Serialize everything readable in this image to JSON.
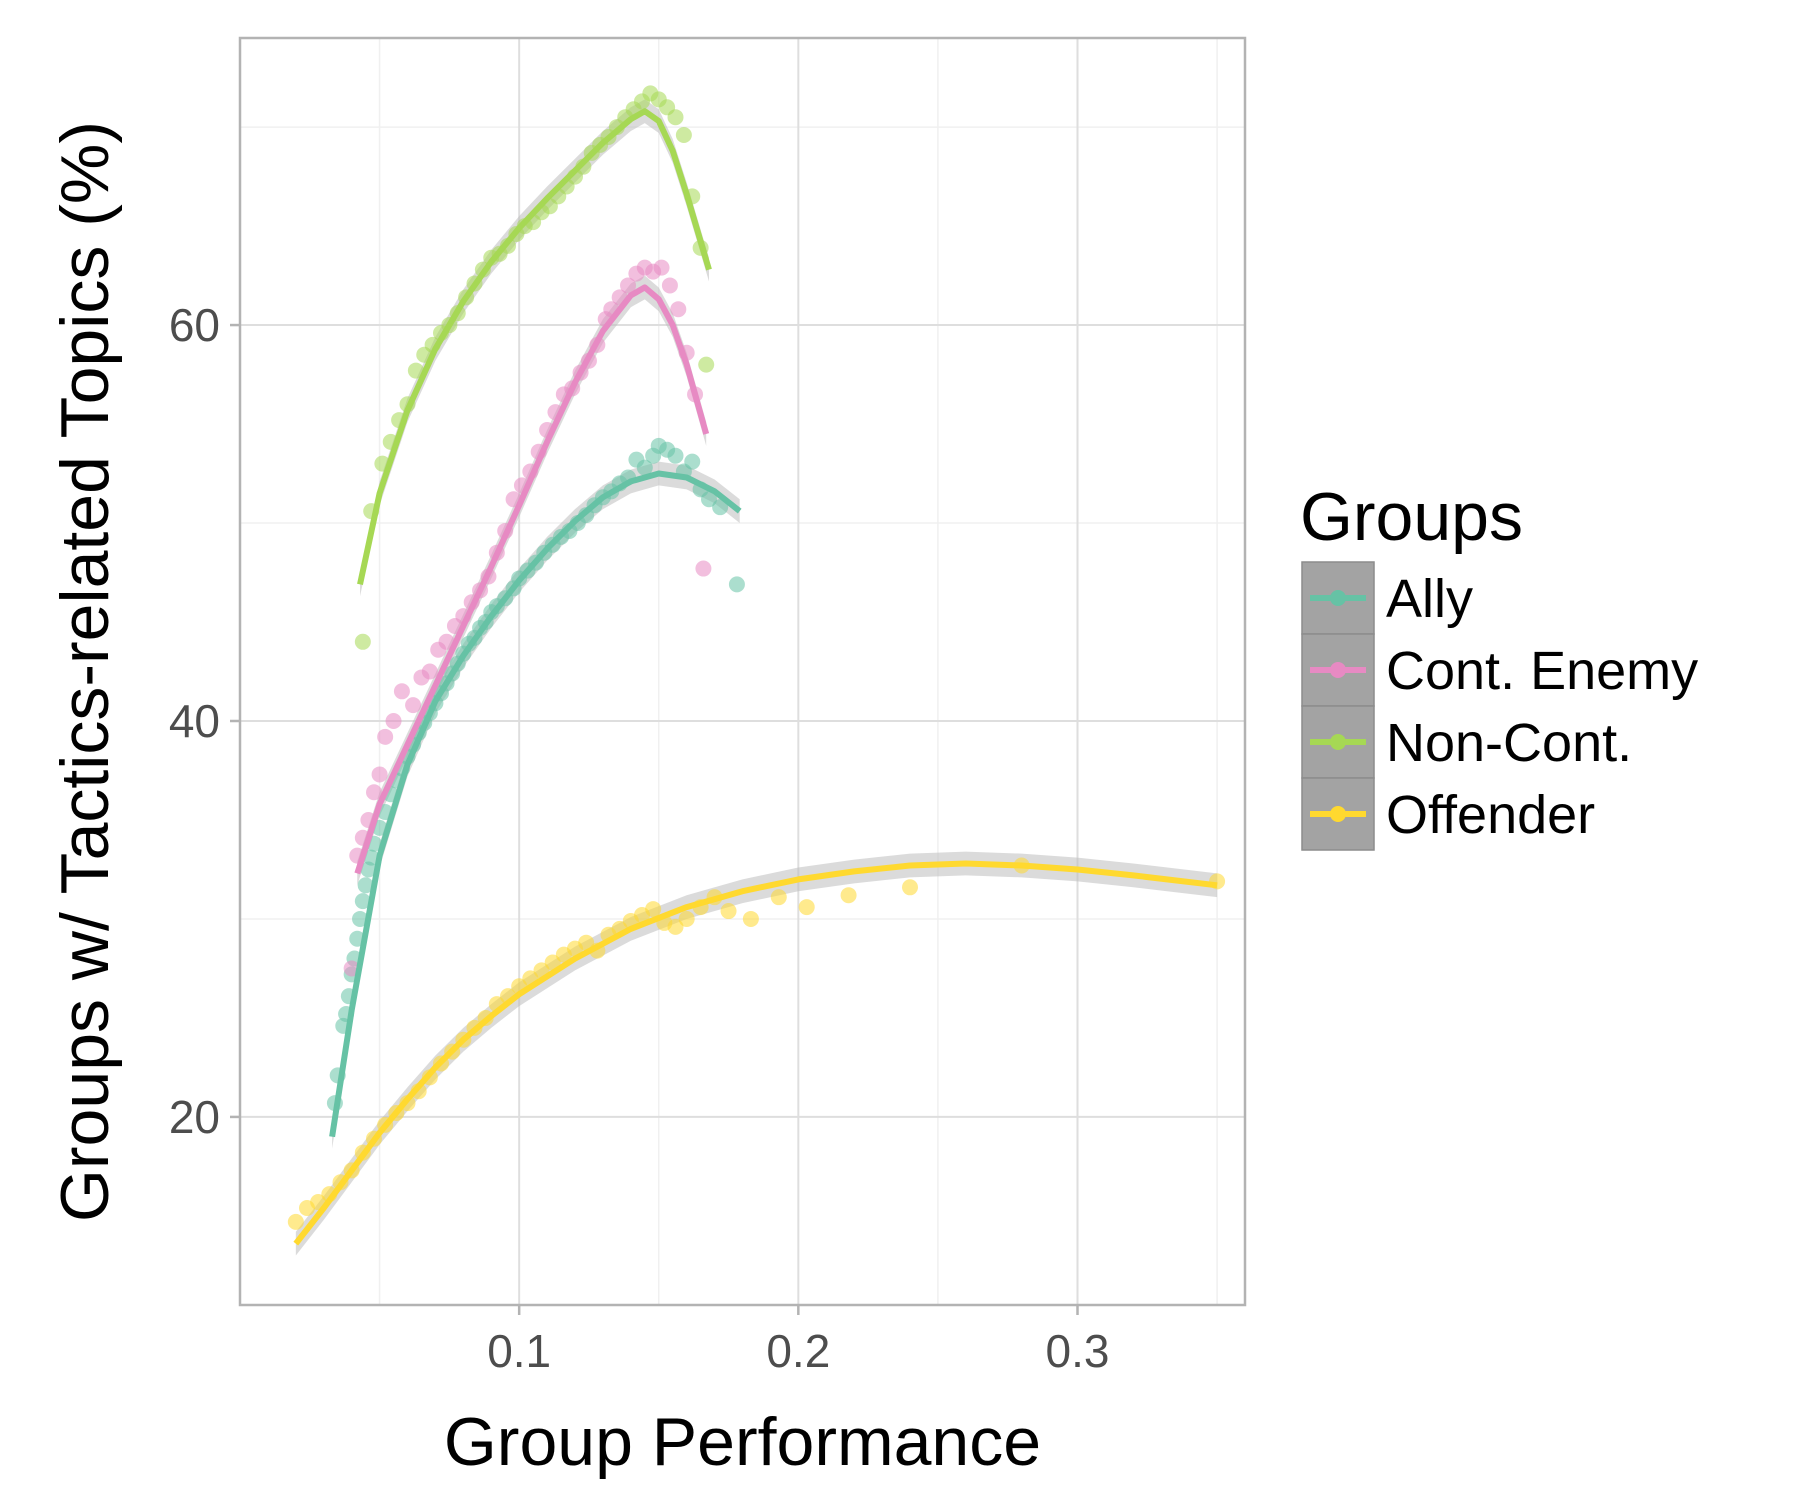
{
  "chart_data": {
    "type": "scatter",
    "title": "",
    "xlabel": "Group Performance",
    "ylabel": "Groups w/ Tactics-related Topics (%)",
    "xlim": [
      0.0,
      0.36
    ],
    "ylim": [
      10.5,
      74.5
    ],
    "xticks": [
      0.1,
      0.2,
      0.3
    ],
    "xtick_labels": [
      "0.1",
      "0.2",
      "0.3"
    ],
    "yticks": [
      20,
      40,
      60
    ],
    "ytick_labels": [
      "20",
      "40",
      "60"
    ],
    "grid": true,
    "legend": {
      "title": "Groups",
      "position": "right"
    },
    "series": [
      {
        "name": "Ally",
        "color": "#66c2a5",
        "points": [
          [
            0.034,
            20.7
          ],
          [
            0.035,
            22.1
          ],
          [
            0.037,
            24.6
          ],
          [
            0.038,
            25.2
          ],
          [
            0.039,
            26.1
          ],
          [
            0.04,
            27.2
          ],
          [
            0.041,
            28.0
          ],
          [
            0.042,
            29.0
          ],
          [
            0.043,
            30.0
          ],
          [
            0.044,
            30.9
          ],
          [
            0.045,
            31.7
          ],
          [
            0.046,
            32.5
          ],
          [
            0.047,
            33.1
          ],
          [
            0.048,
            33.8
          ],
          [
            0.05,
            34.6
          ],
          [
            0.052,
            35.4
          ],
          [
            0.054,
            36.3
          ],
          [
            0.056,
            37.0
          ],
          [
            0.058,
            37.6
          ],
          [
            0.06,
            38.2
          ],
          [
            0.062,
            38.8
          ],
          [
            0.064,
            39.4
          ],
          [
            0.066,
            39.9
          ],
          [
            0.068,
            40.4
          ],
          [
            0.07,
            40.9
          ],
          [
            0.072,
            41.4
          ],
          [
            0.074,
            41.9
          ],
          [
            0.076,
            42.4
          ],
          [
            0.078,
            42.9
          ],
          [
            0.08,
            43.4
          ],
          [
            0.082,
            43.9
          ],
          [
            0.084,
            44.2
          ],
          [
            0.086,
            44.7
          ],
          [
            0.088,
            45.0
          ],
          [
            0.09,
            45.5
          ],
          [
            0.092,
            45.8
          ],
          [
            0.095,
            46.2
          ],
          [
            0.098,
            46.7
          ],
          [
            0.1,
            47.2
          ],
          [
            0.103,
            47.6
          ],
          [
            0.106,
            48.0
          ],
          [
            0.109,
            48.5
          ],
          [
            0.112,
            48.9
          ],
          [
            0.115,
            49.3
          ],
          [
            0.118,
            49.6
          ],
          [
            0.121,
            50.0
          ],
          [
            0.124,
            50.4
          ],
          [
            0.127,
            50.9
          ],
          [
            0.13,
            51.3
          ],
          [
            0.133,
            51.6
          ],
          [
            0.136,
            52.0
          ],
          [
            0.139,
            52.3
          ],
          [
            0.142,
            53.2
          ],
          [
            0.145,
            52.8
          ],
          [
            0.148,
            53.4
          ],
          [
            0.15,
            53.9
          ],
          [
            0.153,
            53.7
          ],
          [
            0.156,
            53.4
          ],
          [
            0.159,
            52.6
          ],
          [
            0.162,
            53.1
          ],
          [
            0.165,
            51.7
          ],
          [
            0.168,
            51.2
          ],
          [
            0.172,
            50.8
          ],
          [
            0.178,
            46.9
          ]
        ],
        "fit": [
          [
            0.033,
            19.0
          ],
          [
            0.04,
            25.4
          ],
          [
            0.05,
            33.2
          ],
          [
            0.06,
            37.8
          ],
          [
            0.07,
            41.0
          ],
          [
            0.08,
            43.3
          ],
          [
            0.09,
            45.3
          ],
          [
            0.1,
            47.1
          ],
          [
            0.11,
            48.7
          ],
          [
            0.12,
            50.1
          ],
          [
            0.13,
            51.3
          ],
          [
            0.14,
            52.1
          ],
          [
            0.15,
            52.5
          ],
          [
            0.16,
            52.3
          ],
          [
            0.17,
            51.6
          ],
          [
            0.179,
            50.6
          ]
        ]
      },
      {
        "name": "Cont. Enemy",
        "color": "#e78ac3",
        "points": [
          [
            0.04,
            27.5
          ],
          [
            0.042,
            33.2
          ],
          [
            0.044,
            34.1
          ],
          [
            0.046,
            35.0
          ],
          [
            0.048,
            36.4
          ],
          [
            0.05,
            37.3
          ],
          [
            0.052,
            39.2
          ],
          [
            0.055,
            40.0
          ],
          [
            0.058,
            41.5
          ],
          [
            0.062,
            40.8
          ],
          [
            0.065,
            42.2
          ],
          [
            0.068,
            42.5
          ],
          [
            0.071,
            43.6
          ],
          [
            0.074,
            44.0
          ],
          [
            0.077,
            44.8
          ],
          [
            0.08,
            45.3
          ],
          [
            0.083,
            46.0
          ],
          [
            0.086,
            46.6
          ],
          [
            0.089,
            47.3
          ],
          [
            0.092,
            48.5
          ],
          [
            0.095,
            49.6
          ],
          [
            0.098,
            51.2
          ],
          [
            0.101,
            51.9
          ],
          [
            0.104,
            52.6
          ],
          [
            0.107,
            53.6
          ],
          [
            0.11,
            54.7
          ],
          [
            0.113,
            55.6
          ],
          [
            0.116,
            56.5
          ],
          [
            0.119,
            56.8
          ],
          [
            0.122,
            57.6
          ],
          [
            0.125,
            58.2
          ],
          [
            0.128,
            59.0
          ],
          [
            0.131,
            60.3
          ],
          [
            0.133,
            60.8
          ],
          [
            0.136,
            61.4
          ],
          [
            0.139,
            62.0
          ],
          [
            0.142,
            62.6
          ],
          [
            0.145,
            62.9
          ],
          [
            0.148,
            62.7
          ],
          [
            0.151,
            62.9
          ],
          [
            0.154,
            62.0
          ],
          [
            0.157,
            60.8
          ],
          [
            0.16,
            58.6
          ],
          [
            0.163,
            56.5
          ],
          [
            0.166,
            47.7
          ]
        ],
        "fit": [
          [
            0.042,
            32.3
          ],
          [
            0.05,
            35.8
          ],
          [
            0.06,
            38.8
          ],
          [
            0.07,
            41.8
          ],
          [
            0.08,
            44.8
          ],
          [
            0.09,
            47.8
          ],
          [
            0.1,
            50.9
          ],
          [
            0.11,
            54.1
          ],
          [
            0.12,
            57.1
          ],
          [
            0.13,
            59.7
          ],
          [
            0.14,
            61.5
          ],
          [
            0.145,
            61.9
          ],
          [
            0.15,
            61.3
          ],
          [
            0.155,
            60.0
          ],
          [
            0.16,
            58.0
          ],
          [
            0.167,
            54.5
          ]
        ]
      },
      {
        "name": "Non-Cont.",
        "color": "#a6d854",
        "points": [
          [
            0.044,
            44.0
          ],
          [
            0.047,
            50.6
          ],
          [
            0.051,
            53.0
          ],
          [
            0.054,
            54.1
          ],
          [
            0.057,
            55.2
          ],
          [
            0.06,
            56.0
          ],
          [
            0.063,
            57.7
          ],
          [
            0.066,
            58.5
          ],
          [
            0.069,
            59.0
          ],
          [
            0.072,
            59.6
          ],
          [
            0.075,
            60.0
          ],
          [
            0.078,
            60.6
          ],
          [
            0.081,
            61.4
          ],
          [
            0.084,
            62.1
          ],
          [
            0.087,
            62.8
          ],
          [
            0.09,
            63.4
          ],
          [
            0.093,
            63.6
          ],
          [
            0.096,
            64.0
          ],
          [
            0.099,
            64.6
          ],
          [
            0.102,
            65.0
          ],
          [
            0.105,
            65.2
          ],
          [
            0.108,
            65.7
          ],
          [
            0.111,
            66.0
          ],
          [
            0.114,
            66.5
          ],
          [
            0.117,
            67.0
          ],
          [
            0.12,
            67.5
          ],
          [
            0.123,
            68.0
          ],
          [
            0.126,
            68.7
          ],
          [
            0.129,
            69.1
          ],
          [
            0.132,
            69.5
          ],
          [
            0.135,
            70.0
          ],
          [
            0.138,
            70.5
          ],
          [
            0.141,
            70.9
          ],
          [
            0.144,
            71.3
          ],
          [
            0.147,
            71.7
          ],
          [
            0.15,
            71.4
          ],
          [
            0.153,
            71.0
          ],
          [
            0.156,
            70.5
          ],
          [
            0.159,
            69.6
          ],
          [
            0.162,
            66.5
          ],
          [
            0.165,
            63.9
          ],
          [
            0.167,
            58.0
          ]
        ],
        "fit": [
          [
            0.043,
            46.9
          ],
          [
            0.05,
            51.5
          ],
          [
            0.06,
            55.7
          ],
          [
            0.07,
            58.8
          ],
          [
            0.08,
            61.2
          ],
          [
            0.09,
            63.2
          ],
          [
            0.1,
            64.9
          ],
          [
            0.11,
            66.4
          ],
          [
            0.12,
            67.8
          ],
          [
            0.13,
            69.2
          ],
          [
            0.14,
            70.4
          ],
          [
            0.145,
            70.8
          ],
          [
            0.15,
            70.3
          ],
          [
            0.155,
            68.8
          ],
          [
            0.16,
            66.6
          ],
          [
            0.168,
            62.8
          ]
        ]
      },
      {
        "name": "Offender",
        "color": "#ffd92f",
        "points": [
          [
            0.02,
            14.7
          ],
          [
            0.024,
            15.4
          ],
          [
            0.028,
            15.7
          ],
          [
            0.032,
            16.1
          ],
          [
            0.036,
            16.7
          ],
          [
            0.04,
            17.3
          ],
          [
            0.044,
            18.2
          ],
          [
            0.048,
            18.9
          ],
          [
            0.052,
            19.6
          ],
          [
            0.056,
            20.2
          ],
          [
            0.06,
            20.7
          ],
          [
            0.064,
            21.3
          ],
          [
            0.068,
            22.0
          ],
          [
            0.072,
            22.7
          ],
          [
            0.076,
            23.3
          ],
          [
            0.08,
            23.9
          ],
          [
            0.084,
            24.5
          ],
          [
            0.088,
            25.0
          ],
          [
            0.092,
            25.7
          ],
          [
            0.096,
            26.1
          ],
          [
            0.1,
            26.6
          ],
          [
            0.104,
            27.0
          ],
          [
            0.108,
            27.4
          ],
          [
            0.112,
            27.8
          ],
          [
            0.116,
            28.2
          ],
          [
            0.12,
            28.5
          ],
          [
            0.124,
            28.8
          ],
          [
            0.128,
            28.4
          ],
          [
            0.132,
            29.2
          ],
          [
            0.136,
            29.5
          ],
          [
            0.14,
            29.9
          ],
          [
            0.144,
            30.2
          ],
          [
            0.148,
            30.5
          ],
          [
            0.152,
            29.8
          ],
          [
            0.156,
            29.6
          ],
          [
            0.16,
            30.0
          ],
          [
            0.165,
            30.6
          ],
          [
            0.17,
            31.1
          ],
          [
            0.175,
            30.4
          ],
          [
            0.183,
            30.0
          ],
          [
            0.193,
            31.1
          ],
          [
            0.203,
            30.6
          ],
          [
            0.218,
            31.2
          ],
          [
            0.24,
            31.6
          ],
          [
            0.28,
            32.7
          ],
          [
            0.35,
            31.9
          ]
        ],
        "fit": [
          [
            0.02,
            13.6
          ],
          [
            0.03,
            15.4
          ],
          [
            0.04,
            17.3
          ],
          [
            0.05,
            19.2
          ],
          [
            0.06,
            20.9
          ],
          [
            0.07,
            22.5
          ],
          [
            0.08,
            23.9
          ],
          [
            0.09,
            25.1
          ],
          [
            0.1,
            26.2
          ],
          [
            0.12,
            28.0
          ],
          [
            0.14,
            29.5
          ],
          [
            0.16,
            30.6
          ],
          [
            0.18,
            31.4
          ],
          [
            0.2,
            32.0
          ],
          [
            0.22,
            32.4
          ],
          [
            0.24,
            32.7
          ],
          [
            0.26,
            32.8
          ],
          [
            0.28,
            32.7
          ],
          [
            0.3,
            32.5
          ],
          [
            0.32,
            32.2
          ],
          [
            0.35,
            31.7
          ]
        ]
      }
    ]
  }
}
